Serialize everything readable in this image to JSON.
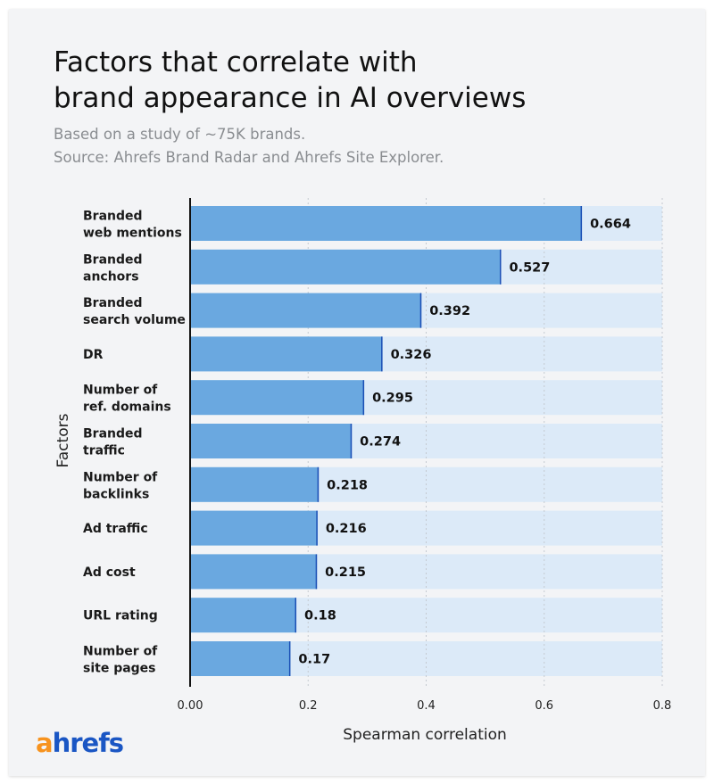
{
  "chart_data": {
    "type": "bar",
    "orientation": "horizontal",
    "title": "Factors that correlate with brand appearance in AI overviews",
    "title_lines": [
      "Factors that correlate with",
      "brand appearance in AI overviews"
    ],
    "subtitle_lines": [
      "Based on a study of ~75K brands.",
      "Source: Ahrefs Brand Radar and Ahrefs Site Explorer."
    ],
    "xlabel": "Spearman correlation",
    "ylabel": "Factors",
    "xlim": [
      0,
      0.8
    ],
    "xticks": [
      "0.00",
      "0.2",
      "0.4",
      "0.6",
      "0.8"
    ],
    "grid": true,
    "categories": [
      [
        "Branded",
        "web mentions"
      ],
      [
        "Branded",
        "anchors"
      ],
      [
        "Branded",
        "search volume"
      ],
      [
        "DR"
      ],
      [
        "Number of",
        "ref. domains"
      ],
      [
        "Branded",
        "traffic"
      ],
      [
        "Number of",
        "backlinks"
      ],
      [
        "Ad traffic"
      ],
      [
        "Ad cost"
      ],
      [
        "URL rating"
      ],
      [
        "Number of",
        "site pages"
      ]
    ],
    "values": [
      0.664,
      0.527,
      0.392,
      0.326,
      0.295,
      0.274,
      0.218,
      0.216,
      0.215,
      0.18,
      0.17
    ],
    "value_labels": [
      "0.664",
      "0.527",
      "0.392",
      "0.326",
      "0.295",
      "0.274",
      "0.218",
      "0.216",
      "0.215",
      "0.18",
      "0.17"
    ],
    "colors": {
      "bar": "#6aa8e0",
      "bar_edge": "#1b4fb5",
      "track": "#dceaf8",
      "grid": "#c4c9d0"
    }
  },
  "brand": {
    "logo_a": "a",
    "logo_rest": "hrefs"
  }
}
